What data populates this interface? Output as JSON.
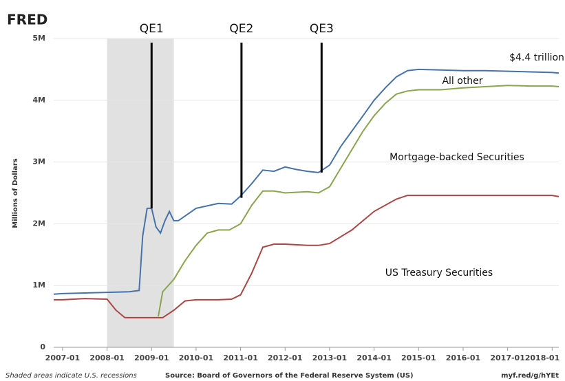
{
  "chart_data": {
    "type": "line",
    "logo": "FRED",
    "ylabel": "Millions of Dollars",
    "xlim": [
      2006.8,
      2018.15
    ],
    "xticks": [
      {
        "value": 2007,
        "label": "2007-01"
      },
      {
        "value": 2008,
        "label": "2008-01"
      },
      {
        "value": 2009,
        "label": "2009-01"
      },
      {
        "value": 2010,
        "label": "2010-01"
      },
      {
        "value": 2011,
        "label": "2011-01"
      },
      {
        "value": 2012,
        "label": "2012-01"
      },
      {
        "value": 2013,
        "label": "2013-01"
      },
      {
        "value": 2014,
        "label": "2014-01"
      },
      {
        "value": 2015,
        "label": "2015-01"
      },
      {
        "value": 2016,
        "label": "2016-01"
      },
      {
        "value": 2017,
        "label": "2017-01"
      },
      {
        "value": 2018,
        "label": "2018-01"
      }
    ],
    "ylim": [
      0,
      5000000
    ],
    "yticks": [
      0,
      {
        "value": 1000000,
        "label": "1M"
      },
      {
        "value": 2000000,
        "label": "2M"
      },
      {
        "value": 3000000,
        "label": "3M"
      },
      {
        "value": 4000000,
        "label": "4M"
      },
      {
        "value": 5000000,
        "label": "5M"
      }
    ],
    "grid": true,
    "recessions": [
      [
        2008.0,
        2009.5
      ]
    ],
    "events": [
      {
        "label": "QE1",
        "x": 2009.0,
        "y": 2250000
      },
      {
        "label": "QE2",
        "x": 2011.02,
        "y": 2420000
      },
      {
        "label": "QE3",
        "x": 2012.82,
        "y": 2830000
      }
    ],
    "annotations": [
      "$4.4 trillion",
      "All other",
      "Mortgage-backed Securities",
      "US Treasury Securities"
    ],
    "series": [
      {
        "color": "#4572a7",
        "x": [
          2006.8,
          2007.0,
          2007.5,
          2008.0,
          2008.5,
          2008.72,
          2008.8,
          2008.9,
          2009.0,
          2009.1,
          2009.2,
          2009.3,
          2009.4,
          2009.5,
          2009.6,
          2009.8,
          2010.0,
          2010.5,
          2010.8,
          2011.0,
          2011.25,
          2011.5,
          2011.75,
          2012.0,
          2012.25,
          2012.5,
          2012.75,
          2013.0,
          2013.25,
          2013.5,
          2013.75,
          2014.0,
          2014.25,
          2014.5,
          2014.75,
          2015.0,
          2015.5,
          2016.0,
          2016.5,
          2017.0,
          2017.5,
          2018.0,
          2018.15
        ],
        "values": [
          860000,
          870000,
          880000,
          890000,
          900000,
          920000,
          1800000,
          2250000,
          2250000,
          1950000,
          1850000,
          2050000,
          2200000,
          2050000,
          2050000,
          2150000,
          2250000,
          2330000,
          2320000,
          2450000,
          2650000,
          2870000,
          2850000,
          2920000,
          2880000,
          2850000,
          2830000,
          2950000,
          3250000,
          3500000,
          3750000,
          4000000,
          4200000,
          4380000,
          4480000,
          4500000,
          4490000,
          4480000,
          4480000,
          4470000,
          4460000,
          4450000,
          4440000
        ]
      },
      {
        "color": "#89a54e",
        "x": [
          2009.15,
          2009.25,
          2009.5,
          2009.75,
          2010.0,
          2010.25,
          2010.5,
          2010.75,
          2011.0,
          2011.25,
          2011.5,
          2011.75,
          2012.0,
          2012.5,
          2012.75,
          2013.0,
          2013.25,
          2013.5,
          2013.75,
          2014.0,
          2014.25,
          2014.5,
          2014.75,
          2015.0,
          2015.5,
          2016.0,
          2016.5,
          2017.0,
          2017.5,
          2018.0,
          2018.15
        ],
        "values": [
          500000,
          900000,
          1100000,
          1400000,
          1650000,
          1850000,
          1900000,
          1900000,
          2000000,
          2300000,
          2530000,
          2530000,
          2500000,
          2520000,
          2500000,
          2600000,
          2900000,
          3200000,
          3500000,
          3750000,
          3950000,
          4100000,
          4150000,
          4170000,
          4170000,
          4200000,
          4220000,
          4240000,
          4230000,
          4230000,
          4220000
        ]
      },
      {
        "color": "#aa4643",
        "x": [
          2006.8,
          2007.0,
          2007.5,
          2008.0,
          2008.2,
          2008.4,
          2008.75,
          2009.0,
          2009.25,
          2009.5,
          2009.75,
          2010.0,
          2010.5,
          2010.8,
          2011.0,
          2011.25,
          2011.5,
          2011.75,
          2012.0,
          2012.5,
          2012.75,
          2013.0,
          2013.5,
          2014.0,
          2014.5,
          2014.75,
          2015.0,
          2016.0,
          2017.0,
          2018.0,
          2018.15
        ],
        "values": [
          770000,
          770000,
          790000,
          780000,
          600000,
          480000,
          480000,
          480000,
          480000,
          600000,
          750000,
          770000,
          770000,
          780000,
          850000,
          1200000,
          1620000,
          1670000,
          1670000,
          1650000,
          1650000,
          1680000,
          1900000,
          2200000,
          2400000,
          2460000,
          2460000,
          2460000,
          2460000,
          2460000,
          2440000
        ]
      }
    ],
    "footer_left": "Shaded areas indicate U.S. recessions",
    "source": "Source: Board of Governors of the Federal Reserve System (US)",
    "footer_right": "myf.red/g/hYEt"
  }
}
